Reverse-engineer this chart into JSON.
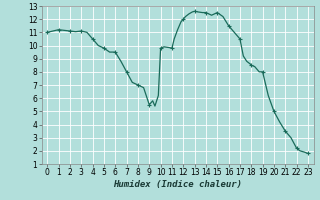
{
  "xlabel": "Humidex (Indice chaleur)",
  "background_color": "#b2dfdb",
  "grid_color": "#c8e8e4",
  "line_color": "#1a6b5a",
  "marker_color": "#1a6b5a",
  "xlim": [
    -0.5,
    23.5
  ],
  "ylim": [
    1,
    13
  ],
  "yticks": [
    1,
    2,
    3,
    4,
    5,
    6,
    7,
    8,
    9,
    10,
    11,
    12,
    13
  ],
  "xticks": [
    0,
    1,
    2,
    3,
    4,
    5,
    6,
    7,
    8,
    9,
    10,
    11,
    12,
    13,
    14,
    15,
    16,
    17,
    18,
    19,
    20,
    21,
    22,
    23
  ],
  "x_full": [
    0,
    0.5,
    1,
    1.5,
    2,
    2.5,
    3,
    3.5,
    4,
    4.5,
    5,
    5.5,
    6,
    6.5,
    7,
    7.5,
    8,
    8.5,
    9,
    9.3,
    9.5,
    9.8,
    10,
    10.3,
    10.7,
    11,
    11.2,
    11.5,
    11.8,
    12,
    12.2,
    12.5,
    12.8,
    13,
    13.3,
    13.7,
    14,
    14.5,
    15,
    15.5,
    16,
    16.5,
    17,
    17.3,
    17.6,
    17.9,
    18,
    18.3,
    18.7,
    19,
    19.5,
    20,
    20.5,
    21,
    21.5,
    22,
    22.3,
    22.7,
    23
  ],
  "y_full": [
    11.0,
    11.1,
    11.2,
    11.15,
    11.1,
    11.05,
    11.1,
    11.0,
    10.5,
    10.0,
    9.8,
    9.5,
    9.5,
    8.8,
    8.0,
    7.2,
    7.0,
    6.8,
    5.5,
    5.8,
    5.4,
    6.2,
    9.8,
    9.9,
    9.85,
    9.8,
    10.5,
    11.2,
    11.8,
    12.0,
    12.2,
    12.4,
    12.55,
    12.6,
    12.55,
    12.5,
    12.5,
    12.3,
    12.5,
    12.2,
    11.5,
    11.0,
    10.5,
    9.2,
    8.8,
    8.6,
    8.5,
    8.4,
    8.0,
    8.0,
    6.2,
    5.0,
    4.2,
    3.5,
    3.0,
    2.2,
    2.0,
    1.9,
    1.8
  ],
  "marker_x": [
    0,
    1,
    2,
    3,
    4,
    5,
    6,
    7,
    8,
    9,
    10,
    11,
    12,
    13,
    14,
    15,
    16,
    17,
    18,
    19,
    20,
    21,
    22,
    23
  ],
  "marker_y": [
    11.0,
    11.2,
    11.1,
    11.1,
    10.5,
    9.8,
    9.5,
    8.0,
    7.0,
    5.5,
    9.8,
    9.8,
    12.0,
    12.6,
    12.5,
    12.5,
    11.5,
    10.5,
    8.5,
    8.0,
    5.0,
    3.5,
    2.2,
    1.8
  ]
}
